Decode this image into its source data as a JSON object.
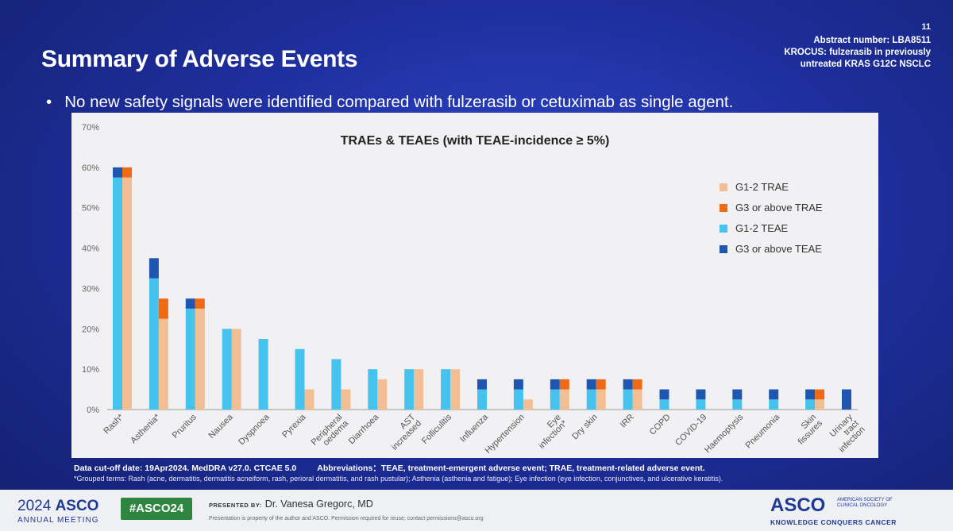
{
  "slide": {
    "number": "11",
    "abstract": "Abstract number: LBA8511",
    "study_line1": "KROCUS: fulzerasib in previously",
    "study_line2": "untreated KRAS G12C NSCLC",
    "title": "Summary of Adverse Events",
    "bullet_marker": "•",
    "bullet": "No new safety signals were identified compared with fulzerasib or cetuximab as single agent."
  },
  "chart_data": {
    "type": "bar",
    "title": "TRAEs & TEAEs (with TEAE-incidence ≥ 5%)",
    "ylim": [
      0,
      70
    ],
    "yticks": [
      "0%",
      "10%",
      "20%",
      "30%",
      "40%",
      "50%",
      "60%",
      "70%"
    ],
    "categories": [
      "Rash*",
      "Asthenia*",
      "Pruritus",
      "Nausea",
      "Dyspnoea",
      "Pyrexia",
      "Peripheral oedema",
      "Diarrhoea",
      "AST increased",
      "Folliculitis",
      "Influenza",
      "Hypertension",
      "Eye infection*",
      "Dry skin",
      "IRR",
      "COPD",
      "COVID-19",
      "Haemoptysis",
      "Pneumonia",
      "Skin fissures",
      "Urinary tract infection"
    ],
    "series": [
      {
        "name": "G1-2 TRAE",
        "values": [
          57.5,
          22.5,
          25,
          20,
          0,
          5,
          5,
          7.5,
          10,
          10,
          0,
          2.5,
          5,
          5,
          5,
          0,
          0,
          0,
          0,
          2.5,
          0
        ]
      },
      {
        "name": "G3 or above TRAE",
        "values": [
          2.5,
          5,
          2.5,
          0,
          0,
          0,
          0,
          0,
          0,
          0,
          0,
          0,
          2.5,
          2.5,
          2.5,
          0,
          0,
          0,
          0,
          2.5,
          0
        ]
      },
      {
        "name": "G1-2 TEAE",
        "values": [
          57.5,
          32.5,
          25,
          20,
          17.5,
          15,
          12.5,
          10,
          10,
          10,
          5,
          5,
          5,
          5,
          5,
          2.5,
          2.5,
          2.5,
          2.5,
          2.5,
          0
        ]
      },
      {
        "name": "G3 or above TEAE",
        "values": [
          2.5,
          5,
          2.5,
          0,
          0,
          0,
          0,
          0,
          0,
          0,
          2.5,
          2.5,
          2.5,
          2.5,
          2.5,
          2.5,
          2.5,
          2.5,
          2.5,
          2.5,
          5
        ]
      }
    ],
    "colors": {
      "G1-2 TRAE": "#f2bf94",
      "G3 or above TRAE": "#ef6a15",
      "G1-2 TEAE": "#45c3ee",
      "G3 or above TEAE": "#1e56b0"
    },
    "legend_position": "right",
    "grid": false
  },
  "footer": {
    "cutoff": "Data cut-off date: 19Apr2024. MedDRA v27.0. CTCAE 5.0",
    "abbrev": "Abbreviations：TEAE, treatment-emergent adverse event; TRAE, treatment-related adverse event.",
    "grouped": "*Grouped terms: Rash (acne, dermatitis, dermatitis acneiform, rash, perioral dermatitis, and rash pustular); Asthenia (asthenia and fatigue); Eye infection (eye infection, conjunctives, and ulcerative keratitis)."
  },
  "bottom_bar": {
    "year": "2024",
    "asco": "ASCO",
    "meeting": "ANNUAL MEETING",
    "hashtag": "#ASCO24",
    "presented_label": "PRESENTED BY:",
    "presenter": "Dr. Vanesa Gregorc, MD",
    "disclaimer": "Presentation is property of the author and ASCO. Permission required for reuse; contact permissions@asco.org",
    "society": "AMERICAN SOCIETY OF CLINICAL ONCOLOGY",
    "tagline": "KNOWLEDGE CONQUERS CANCER"
  }
}
